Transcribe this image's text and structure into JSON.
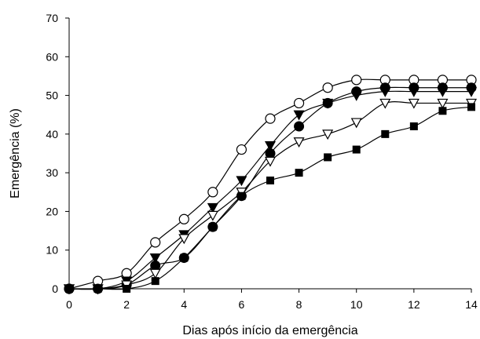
{
  "chart_data": {
    "type": "scatter",
    "title": "",
    "xlabel": "Dias após início da emergência",
    "ylabel": "Emergência (%)",
    "xlim": [
      0,
      14
    ],
    "ylim": [
      0,
      70
    ],
    "xticks": [
      0,
      2,
      4,
      6,
      8,
      10,
      12,
      14
    ],
    "yticks": [
      0,
      10,
      20,
      30,
      40,
      50,
      60,
      70
    ],
    "grid": false,
    "legend": "none",
    "fitted_curves": true,
    "series": [
      {
        "marker": "open-circle",
        "x": [
          0,
          1,
          2,
          3,
          4,
          5,
          6,
          7,
          8,
          9,
          10,
          11,
          12,
          13,
          14
        ],
        "y": [
          0,
          2,
          4,
          12,
          18,
          25,
          36,
          44,
          48,
          52,
          54,
          54,
          54,
          54,
          54
        ]
      },
      {
        "marker": "filled-circle",
        "x": [
          0,
          1,
          2,
          3,
          4,
          5,
          6,
          7,
          8,
          9,
          10,
          11,
          12,
          13,
          14
        ],
        "y": [
          0,
          0,
          1,
          6,
          8,
          16,
          24,
          35,
          42,
          48,
          51,
          52,
          52,
          52,
          52
        ]
      },
      {
        "marker": "filled-triangle-down",
        "x": [
          0,
          1,
          2,
          3,
          4,
          5,
          6,
          7,
          8,
          9,
          10,
          11,
          12,
          13,
          14
        ],
        "y": [
          0,
          0,
          2,
          8,
          14,
          21,
          28,
          37,
          45,
          48,
          50,
          51,
          51,
          51,
          51
        ]
      },
      {
        "marker": "open-triangle-down",
        "x": [
          0,
          1,
          2,
          3,
          4,
          5,
          6,
          7,
          8,
          9,
          10,
          11,
          12,
          13,
          14
        ],
        "y": [
          0,
          0,
          1,
          4,
          13,
          19,
          25,
          33,
          38,
          40,
          43,
          48,
          48,
          48,
          48
        ]
      },
      {
        "marker": "filled-square",
        "x": [
          0,
          1,
          2,
          3,
          4,
          5,
          6,
          7,
          8,
          9,
          10,
          11,
          12,
          13,
          14
        ],
        "y": [
          0,
          0,
          0,
          2,
          8,
          16,
          24,
          28,
          30,
          34,
          36,
          40,
          42,
          46,
          47
        ]
      }
    ]
  }
}
